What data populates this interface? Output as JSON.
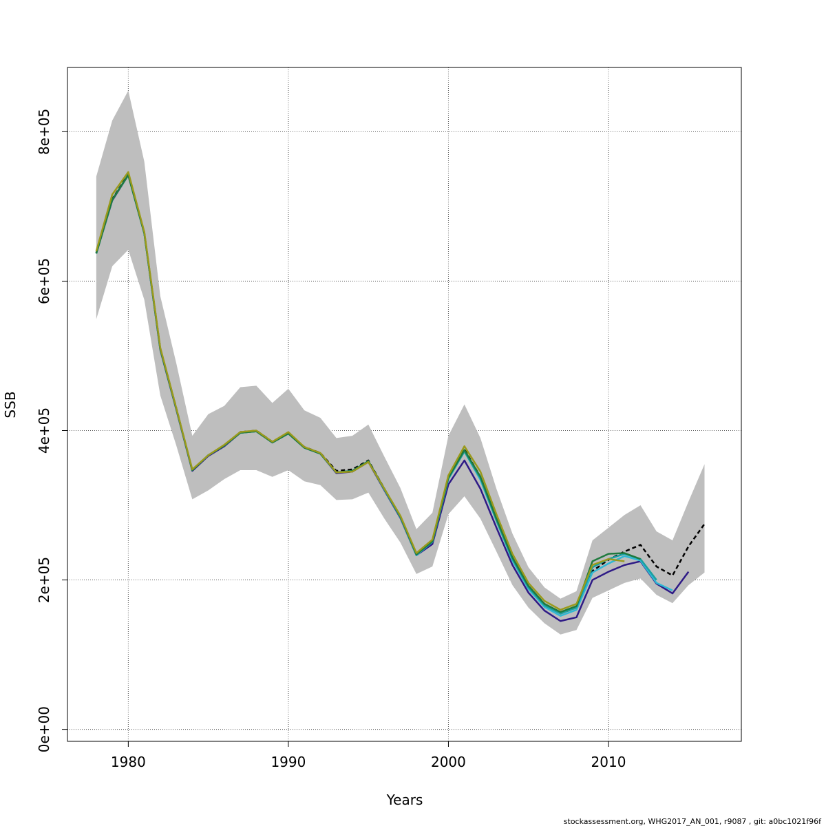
{
  "chart_data": {
    "type": "line",
    "xlabel": "Years",
    "ylabel": "SSB",
    "xlim": [
      1976.2,
      2018.3
    ],
    "ylim": [
      -16000,
      886000
    ],
    "x_ticks": [
      1980,
      1990,
      2000,
      2010
    ],
    "x_tick_labels": [
      "1980",
      "1990",
      "2000",
      "2010"
    ],
    "y_ticks": [
      0,
      200000,
      400000,
      600000,
      800000
    ],
    "y_tick_labels": [
      "0e+00",
      "2e+05",
      "4e+05",
      "6e+05",
      "8e+05"
    ],
    "grid": true,
    "confidence_band": {
      "color": "#bebebe",
      "x": [
        1978,
        1979,
        1980,
        1981,
        1982,
        1983,
        1984,
        1985,
        1986,
        1987,
        1988,
        1989,
        1990,
        1991,
        1992,
        1993,
        1994,
        1995,
        1996,
        1997,
        1998,
        1999,
        2000,
        2001,
        2002,
        2003,
        2004,
        2005,
        2006,
        2007,
        2008,
        2009,
        2010,
        2011,
        2012,
        2013,
        2014,
        2015,
        2016
      ],
      "upper": [
        740000,
        815000,
        855000,
        760000,
        580000,
        490000,
        393000,
        422000,
        433000,
        458000,
        460000,
        437000,
        456000,
        427000,
        417000,
        390000,
        393000,
        408000,
        365000,
        323000,
        268000,
        290000,
        393000,
        435000,
        390000,
        322000,
        262000,
        217000,
        190000,
        175000,
        185000,
        253000,
        270000,
        287000,
        300000,
        265000,
        253000,
        305000,
        355000
      ],
      "lower": [
        549000,
        620000,
        642000,
        575000,
        447000,
        380000,
        308000,
        320000,
        335000,
        347000,
        347000,
        338000,
        347000,
        332000,
        327000,
        307000,
        308000,
        317000,
        282000,
        250000,
        208000,
        218000,
        288000,
        312000,
        282000,
        238000,
        193000,
        163000,
        142000,
        127000,
        133000,
        176000,
        186000,
        196000,
        202000,
        180000,
        169000,
        193000,
        210000
      ]
    },
    "series": [
      {
        "color": "#000000",
        "dashed": true,
        "x": [
          1978,
          1979,
          1980,
          1981,
          1982,
          1983,
          1984,
          1985,
          1986,
          1987,
          1988,
          1989,
          1990,
          1991,
          1992,
          1993,
          1994,
          1995,
          1996,
          1997,
          1998,
          1999,
          2000,
          2001,
          2002,
          2003,
          2004,
          2005,
          2006,
          2007,
          2008,
          2009,
          2010,
          2011,
          2012,
          2013,
          2014,
          2015,
          2016
        ],
        "y": [
          638000,
          710000,
          743000,
          665000,
          510000,
          430000,
          347000,
          367000,
          380000,
          398000,
          400000,
          385000,
          397000,
          378000,
          370000,
          346000,
          348000,
          360000,
          322000,
          285000,
          235000,
          252000,
          338000,
          375000,
          338000,
          282000,
          230000,
          192000,
          168000,
          155000,
          163000,
          212000,
          227000,
          238000,
          247000,
          218000,
          206000,
          245000,
          275000
        ]
      },
      {
        "color": "#2e1a86",
        "dashed": false,
        "x": [
          1978,
          1979,
          1980,
          1981,
          1982,
          1983,
          1984,
          1985,
          1986,
          1987,
          1988,
          1989,
          1990,
          1991,
          1992,
          1993,
          1994,
          1995,
          1996,
          1997,
          1998,
          1999,
          2000,
          2001,
          2002,
          2003,
          2004,
          2005,
          2006,
          2007,
          2008,
          2009,
          2010,
          2011,
          2012,
          2013,
          2014,
          2015
        ],
        "y": [
          637000,
          708000,
          742000,
          664000,
          508000,
          428000,
          346000,
          366000,
          379000,
          397000,
          399000,
          384000,
          396000,
          377000,
          369000,
          343000,
          345000,
          358000,
          320000,
          283000,
          233000,
          248000,
          328000,
          360000,
          322000,
          270000,
          220000,
          183000,
          159000,
          145000,
          150000,
          200000,
          211000,
          220000,
          225000,
          195000,
          182000,
          211000
        ]
      },
      {
        "color": "#2fb8d4",
        "dashed": false,
        "x": [
          1978,
          1979,
          1980,
          1981,
          1982,
          1983,
          1984,
          1985,
          1986,
          1987,
          1988,
          1989,
          1990,
          1991,
          1992,
          1993,
          1994,
          1995,
          1996,
          1997,
          1998,
          1999,
          2000,
          2001,
          2002,
          2003,
          2004,
          2005,
          2006,
          2007,
          2008,
          2009,
          2010,
          2011,
          2012,
          2013,
          2014
        ],
        "y": [
          637000,
          709000,
          742000,
          664000,
          509000,
          429000,
          347000,
          367000,
          380000,
          397000,
          399000,
          384000,
          396000,
          377000,
          369000,
          344000,
          346000,
          359000,
          321000,
          284000,
          233000,
          251000,
          335000,
          372000,
          334000,
          279000,
          226000,
          188000,
          164000,
          152000,
          160000,
          210000,
          222000,
          232000,
          226000,
          196000,
          186000
        ]
      },
      {
        "color": "#1aa0a0",
        "dashed": false,
        "x": [
          1978,
          1979,
          1980,
          1981,
          1982,
          1983,
          1984,
          1985,
          1986,
          1987,
          1988,
          1989,
          1990,
          1991,
          1992,
          1993,
          1994,
          1995,
          1996,
          1997,
          1998,
          1999,
          2000,
          2001,
          2002,
          2003,
          2004,
          2005,
          2006,
          2007,
          2008,
          2009,
          2010,
          2011,
          2012,
          2013
        ],
        "y": [
          637000,
          709000,
          742000,
          664000,
          509000,
          429000,
          347000,
          367000,
          380000,
          397000,
          399000,
          384000,
          396000,
          377000,
          369000,
          344000,
          346000,
          359000,
          321000,
          284000,
          234000,
          251000,
          336000,
          372000,
          336000,
          280000,
          228000,
          190000,
          166000,
          155000,
          163000,
          217000,
          228000,
          235000,
          228000,
          200000
        ]
      },
      {
        "color": "#1f7a3e",
        "dashed": false,
        "x": [
          1978,
          1979,
          1980,
          1981,
          1982,
          1983,
          1984,
          1985,
          1986,
          1987,
          1988,
          1989,
          1990,
          1991,
          1992,
          1993,
          1994,
          1995,
          1996,
          1997,
          1998,
          1999,
          2000,
          2001,
          2002,
          2003,
          2004,
          2005,
          2006,
          2007,
          2008,
          2009,
          2010,
          2011,
          2012
        ],
        "y": [
          637000,
          709000,
          742000,
          664000,
          509000,
          429000,
          347000,
          367000,
          380000,
          397000,
          399000,
          384000,
          396000,
          377000,
          369000,
          344000,
          346000,
          359000,
          322000,
          285000,
          234000,
          252000,
          337000,
          374000,
          338000,
          282000,
          230000,
          192000,
          168000,
          157000,
          165000,
          225000,
          235000,
          236000,
          228000
        ]
      },
      {
        "color": "#9a9a1c",
        "dashed": false,
        "x": [
          1978,
          1979,
          1980,
          1981,
          1982,
          1983,
          1984,
          1985,
          1986,
          1987,
          1988,
          1989,
          1990,
          1991,
          1992,
          1993,
          1994,
          1995,
          1996,
          1997,
          1998,
          1999,
          2000,
          2001,
          2002,
          2003,
          2004,
          2005,
          2006,
          2007,
          2008,
          2009,
          2010,
          2011
        ],
        "y": [
          640000,
          716000,
          746000,
          666000,
          511000,
          430000,
          348000,
          367000,
          381000,
          398000,
          400000,
          385000,
          398000,
          378000,
          370000,
          344000,
          345000,
          358000,
          322000,
          286000,
          236000,
          254000,
          340000,
          379000,
          345000,
          288000,
          235000,
          196000,
          172000,
          160000,
          168000,
          220000,
          228000,
          225000
        ]
      }
    ]
  },
  "footer": "stockassessment.org, WHG2017_AN_001, r9087 , git: a0bc1021f96f"
}
